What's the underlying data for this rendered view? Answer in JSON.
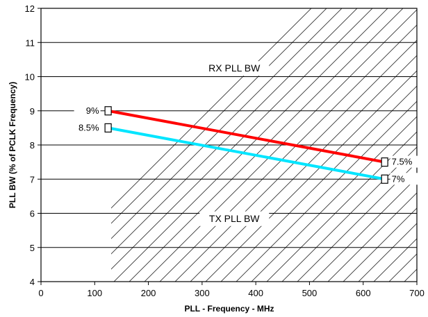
{
  "chart_data": {
    "type": "line",
    "title": "",
    "xlabel": "PLL - Frequency - MHz",
    "ylabel": "PLL BW (% of PCLK Frequency)",
    "xlim": [
      0,
      700
    ],
    "ylim": [
      4,
      12
    ],
    "x_ticks": [
      "0",
      "100",
      "200",
      "300",
      "400",
      "500",
      "600",
      "700"
    ],
    "y_ticks": [
      "4",
      "5",
      "6",
      "7",
      "8",
      "9",
      "10",
      "11",
      "12"
    ],
    "grid": "horizontal",
    "series": [
      {
        "color": "#ff0000",
        "x": [
          125,
          640
        ],
        "y": [
          9,
          7.5
        ]
      },
      {
        "color": "#00e5ff",
        "x": [
          125,
          640
        ],
        "y": [
          8.5,
          7
        ]
      }
    ],
    "regions": [
      {
        "label": "RX PLL BW",
        "x": 360,
        "y": 10.15
      },
      {
        "label": "TX PLL BW",
        "x": 360,
        "y": 5.75
      }
    ],
    "annotations": [
      {
        "text": "9%",
        "x": 125,
        "y": 9,
        "side": "left"
      },
      {
        "text": "8.5%",
        "x": 125,
        "y": 8.5,
        "side": "left"
      },
      {
        "text": "7.5%",
        "x": 640,
        "y": 7.5,
        "side": "right"
      },
      {
        "text": "7%",
        "x": 640,
        "y": 7,
        "side": "right"
      }
    ]
  }
}
